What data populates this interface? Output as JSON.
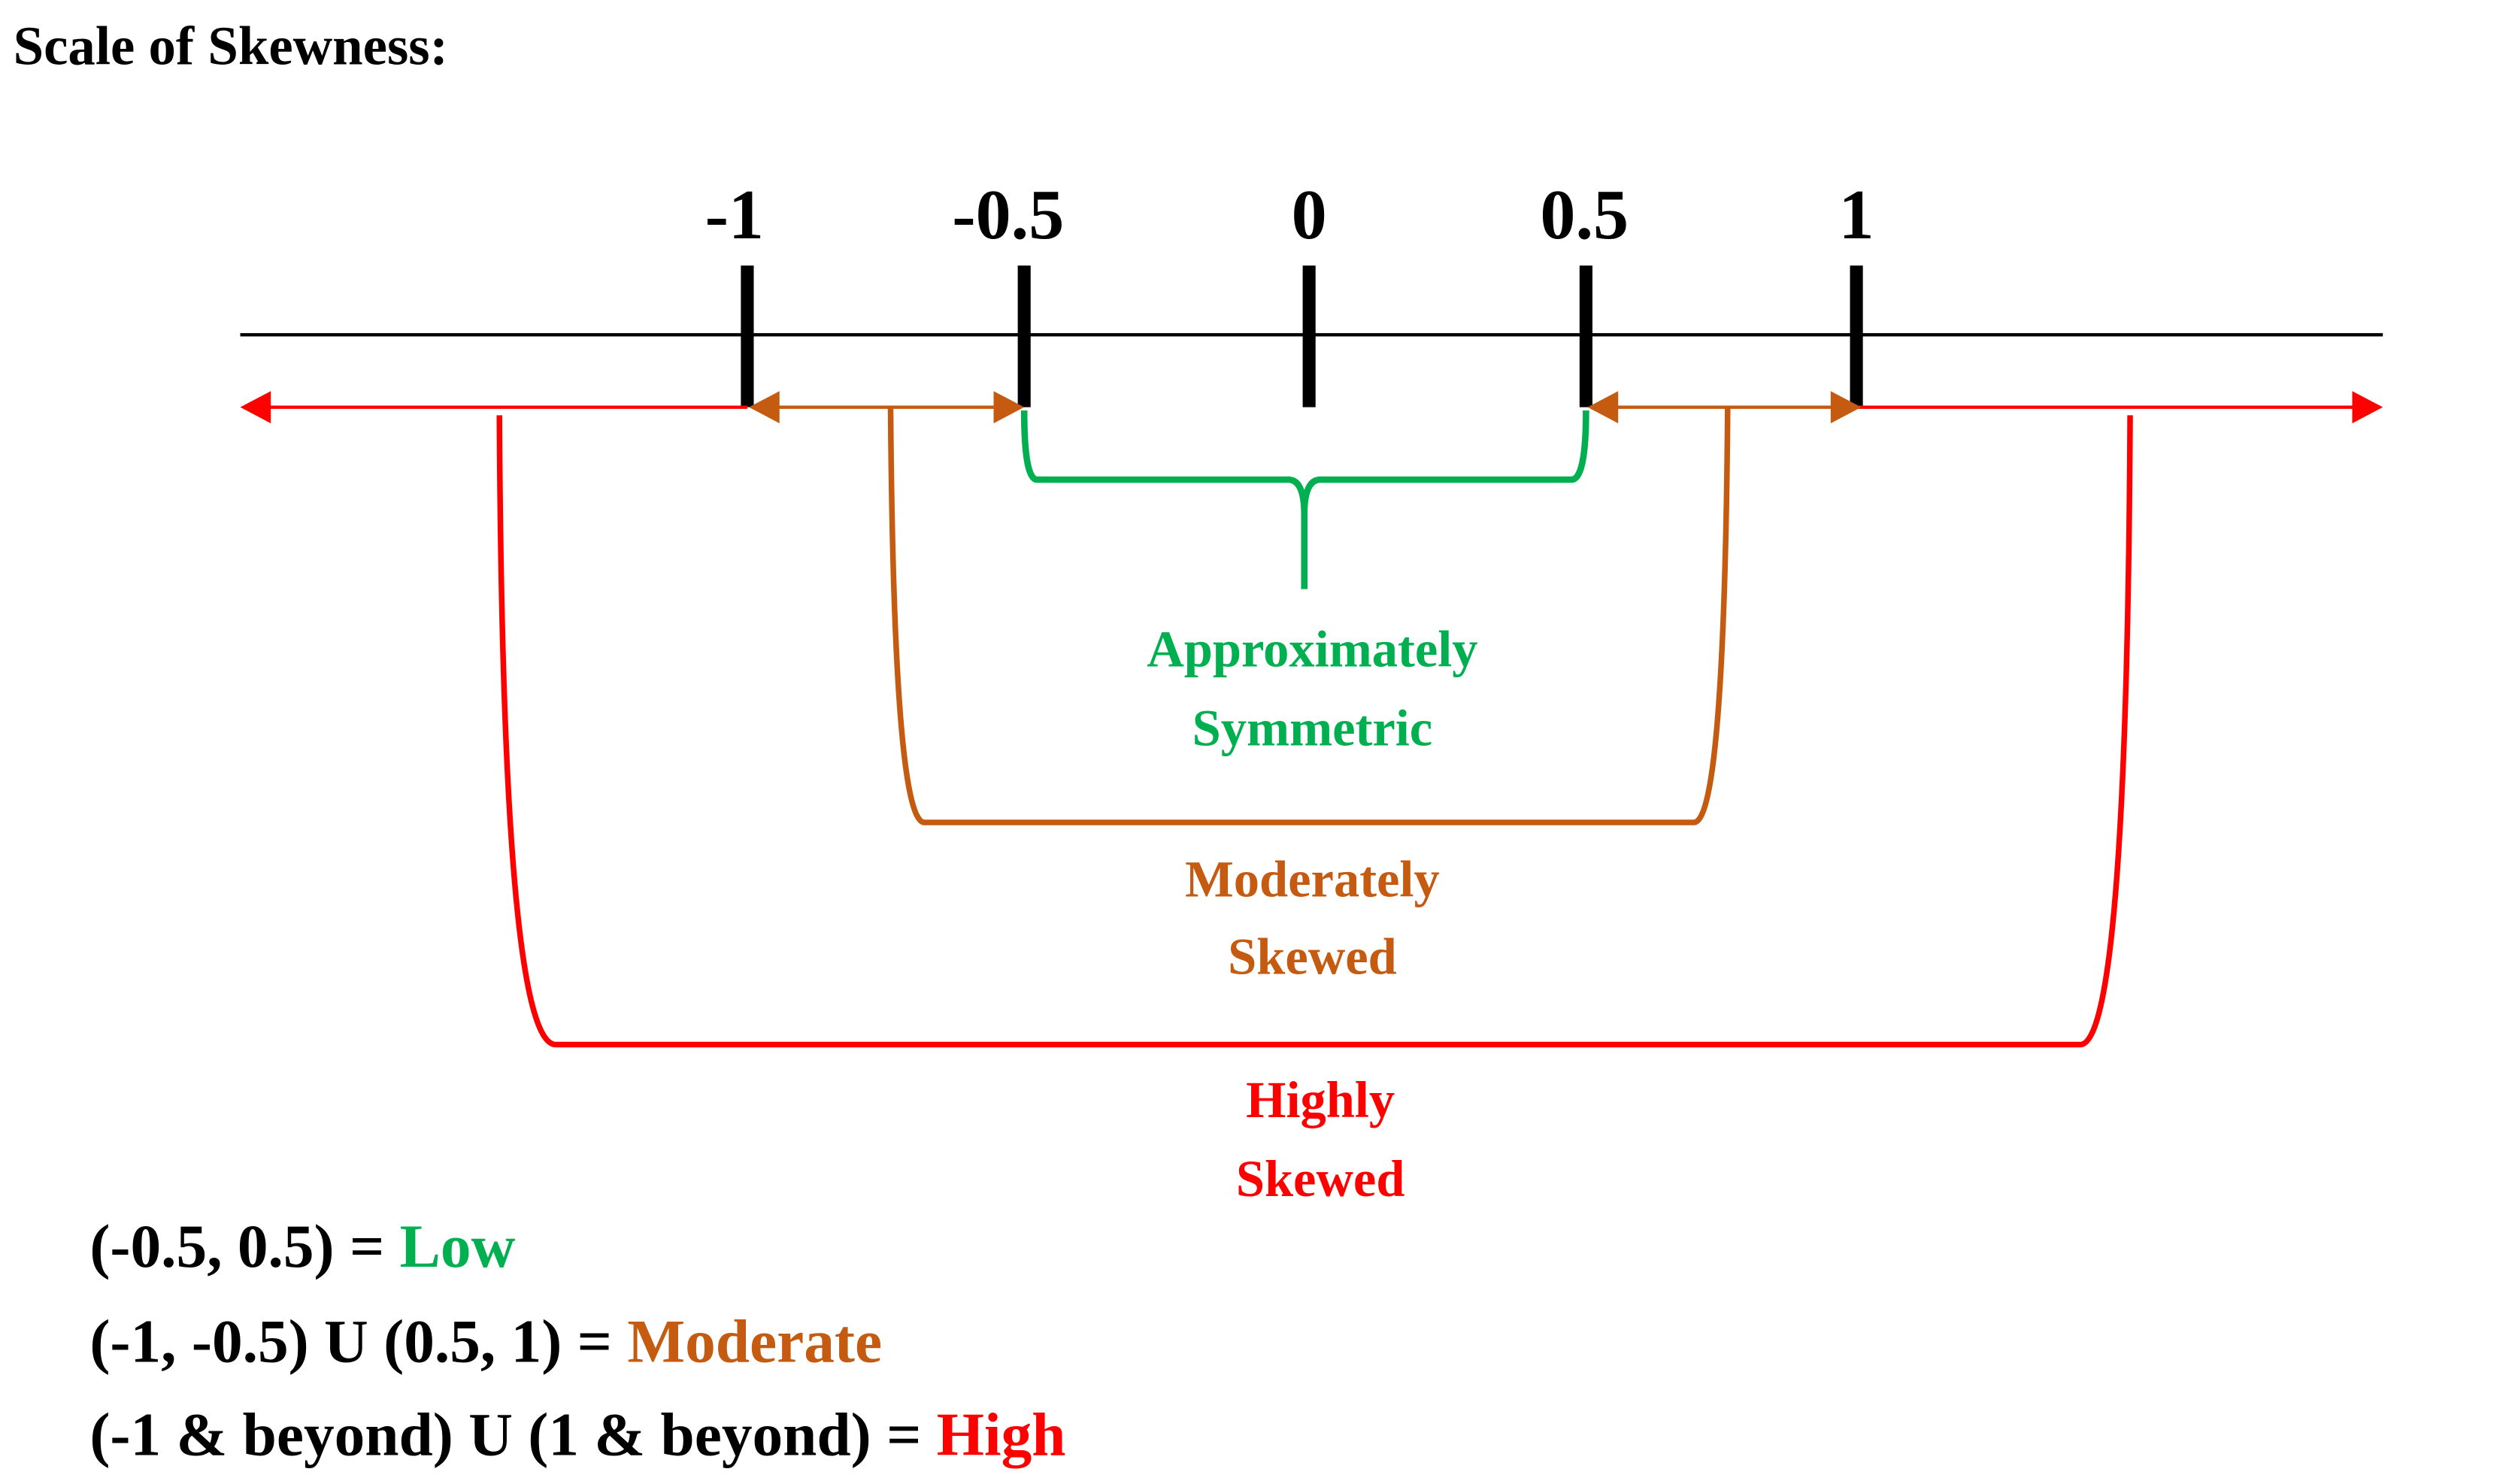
{
  "title": "Scale of Skewness:",
  "colors": {
    "axis": "#000000",
    "low": "#00B050",
    "moderate": "#C55A11",
    "high": "#FF0000"
  },
  "ticks": [
    "-1",
    "-0.5",
    "0",
    "0.5",
    "1"
  ],
  "categories": {
    "low": {
      "line1": "Approximately",
      "line2": "Symmetric"
    },
    "moderate": {
      "line1": "Moderately",
      "line2": "Skewed"
    },
    "high": {
      "line1": "Highly",
      "line2": "Skewed"
    }
  },
  "legend": [
    {
      "range": "(-0.5, 0.5) = ",
      "level": "Low"
    },
    {
      "range": "(-1, -0.5) U (0.5, 1) = ",
      "level": "Moderate"
    },
    {
      "range": "(-1 & beyond) U (1 & beyond) = ",
      "level": "High"
    }
  ]
}
